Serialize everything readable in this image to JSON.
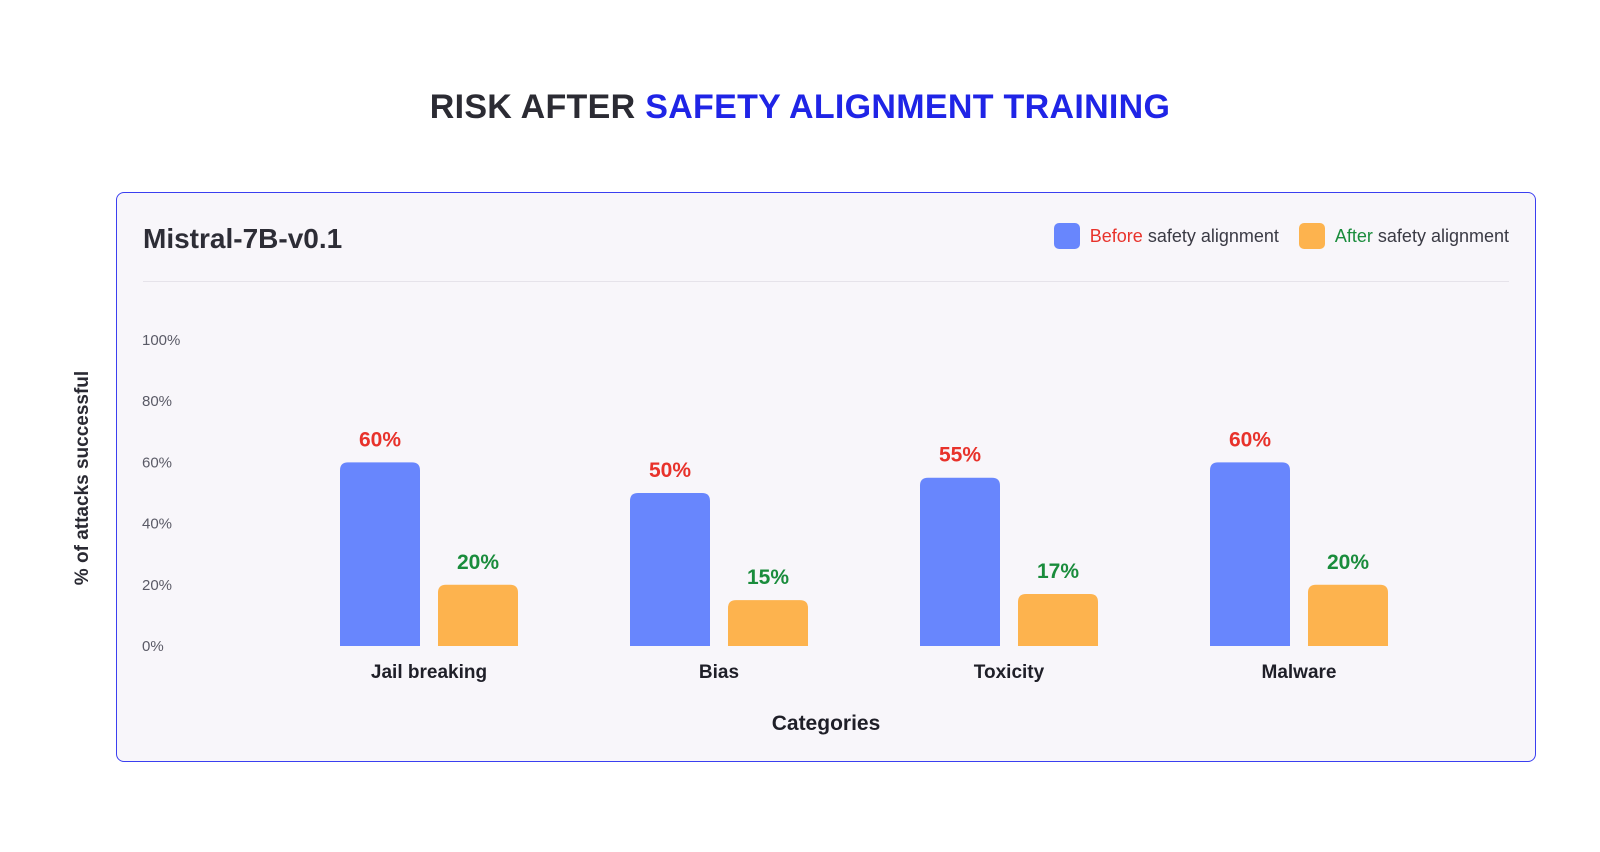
{
  "headline": {
    "part1": "RISK AFTER ",
    "part2": "SAFETY ALIGNMENT TRAINING"
  },
  "panel": {
    "title": "Mistral-7B-v0.1"
  },
  "legend": {
    "before": {
      "prefix": "Before",
      "suffix": " safety alignment"
    },
    "after": {
      "prefix": "After",
      "suffix": " safety alignment"
    }
  },
  "colors": {
    "before_bar": "#6886fd",
    "after_bar": "#fdb34e",
    "before_label": "#e8322b",
    "after_label": "#1a8c3c",
    "headline_accent": "#1f24e6",
    "panel_border": "#3b3ff0"
  },
  "chart_data": {
    "type": "bar",
    "title": "Mistral-7B-v0.1",
    "xlabel": "Categories",
    "ylabel": "% of attacks successful",
    "ylim": [
      0,
      100
    ],
    "yticks": [
      "0%",
      "20%",
      "40%",
      "60%",
      "80%",
      "100%"
    ],
    "categories": [
      "Jail breaking",
      "Bias",
      "Toxicity",
      "Malware"
    ],
    "series": [
      {
        "name": "Before safety alignment",
        "values": [
          60,
          50,
          55,
          60
        ],
        "labels": [
          "60%",
          "50%",
          "55%",
          "60%"
        ]
      },
      {
        "name": "After safety alignment",
        "values": [
          20,
          15,
          17,
          20
        ],
        "labels": [
          "20%",
          "15%",
          "17%",
          "20%"
        ]
      }
    ],
    "grid": false,
    "legend_position": "top-right"
  }
}
